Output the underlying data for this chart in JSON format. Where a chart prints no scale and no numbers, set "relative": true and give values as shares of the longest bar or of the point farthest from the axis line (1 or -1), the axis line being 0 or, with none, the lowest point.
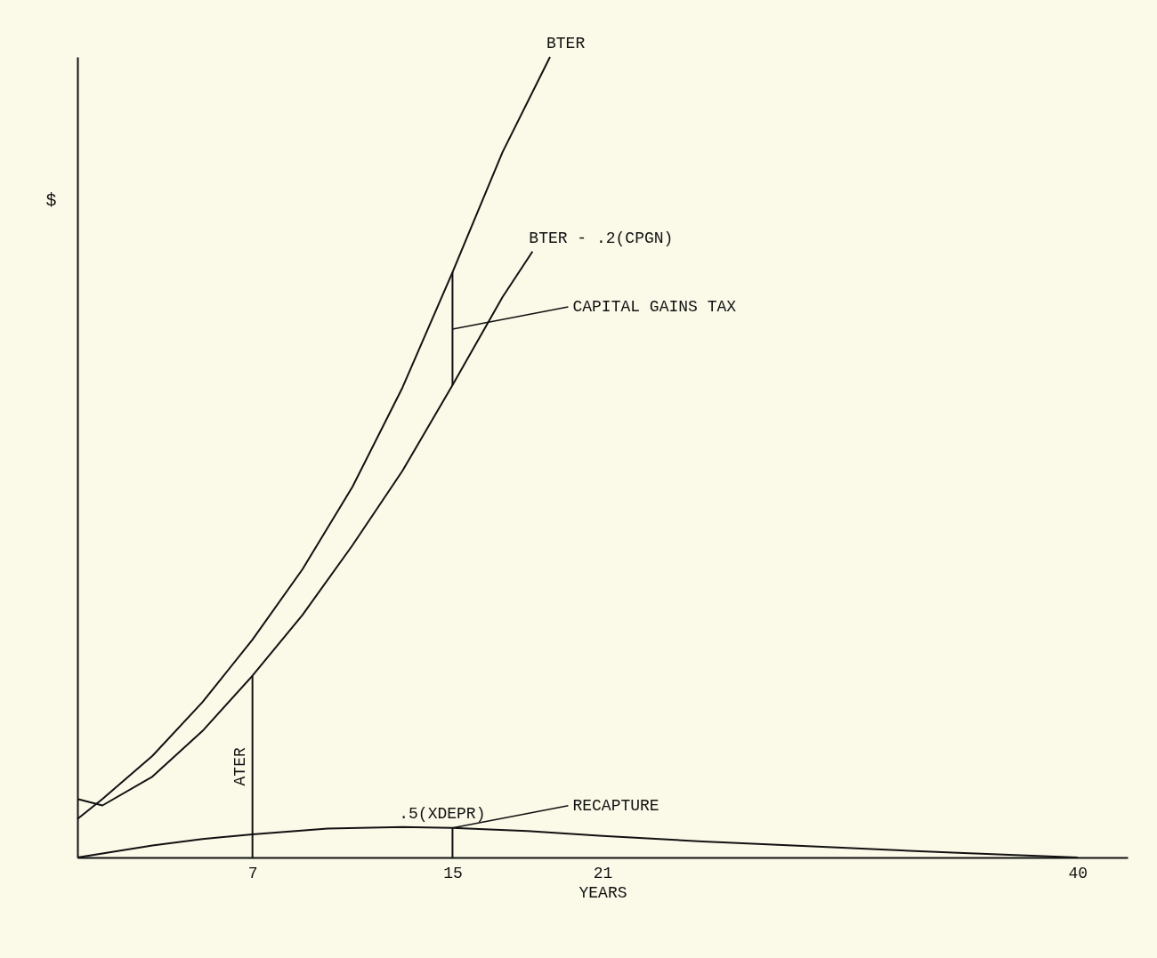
{
  "chart_data": {
    "type": "line",
    "relative": true,
    "ylabel": "$",
    "xlabel": "YEARS",
    "xlim": [
      0,
      42
    ],
    "xticks": [
      7,
      15,
      21,
      40
    ],
    "grid": false,
    "marker": "none",
    "line_style": "solid",
    "series": [
      {
        "name": "BTER",
        "color": "#111111",
        "x": [
          0,
          1,
          3,
          5,
          7,
          9,
          11,
          13,
          15,
          17,
          18.9
        ],
        "values": [
          0.048,
          0.073,
          0.127,
          0.194,
          0.272,
          0.36,
          0.463,
          0.587,
          0.731,
          0.881,
          1
        ]
      },
      {
        "name": "BTER - .2(CPGN)",
        "color": "#111111",
        "x": [
          0,
          1,
          3,
          5,
          7,
          9,
          11,
          13,
          15,
          17,
          18.2
        ],
        "values": [
          0.073,
          0.065,
          0.101,
          0.158,
          0.227,
          0.303,
          0.39,
          0.483,
          0.59,
          0.7,
          0.757
        ]
      },
      {
        "name": ".5(XDEPR)",
        "color": "#111111",
        "x": [
          0,
          3,
          5,
          7,
          10,
          13,
          15,
          18,
          21,
          25,
          30,
          35,
          40
        ],
        "values": [
          0,
          0.015,
          0.023,
          0.029,
          0.036,
          0.038,
          0.037,
          0.033,
          0.027,
          0.02,
          0.013,
          0.006,
          0
        ]
      },
      {
        "name": "ATER",
        "color": "#111111",
        "x": [
          7,
          7
        ],
        "values": [
          0,
          0.227
        ]
      },
      {
        "color": "#111111",
        "x": [
          15,
          15
        ],
        "values": [
          0.59,
          0.731
        ]
      },
      {
        "color": "#111111",
        "x": [
          15,
          15
        ],
        "values": [
          0,
          0.037
        ]
      }
    ],
    "annotations": [
      {
        "text": "CAPITAL GAINS TAX",
        "x": 15,
        "y": 0.66
      },
      {
        "text": "RECAPTURE",
        "x": 15,
        "y": 0.037
      }
    ]
  }
}
